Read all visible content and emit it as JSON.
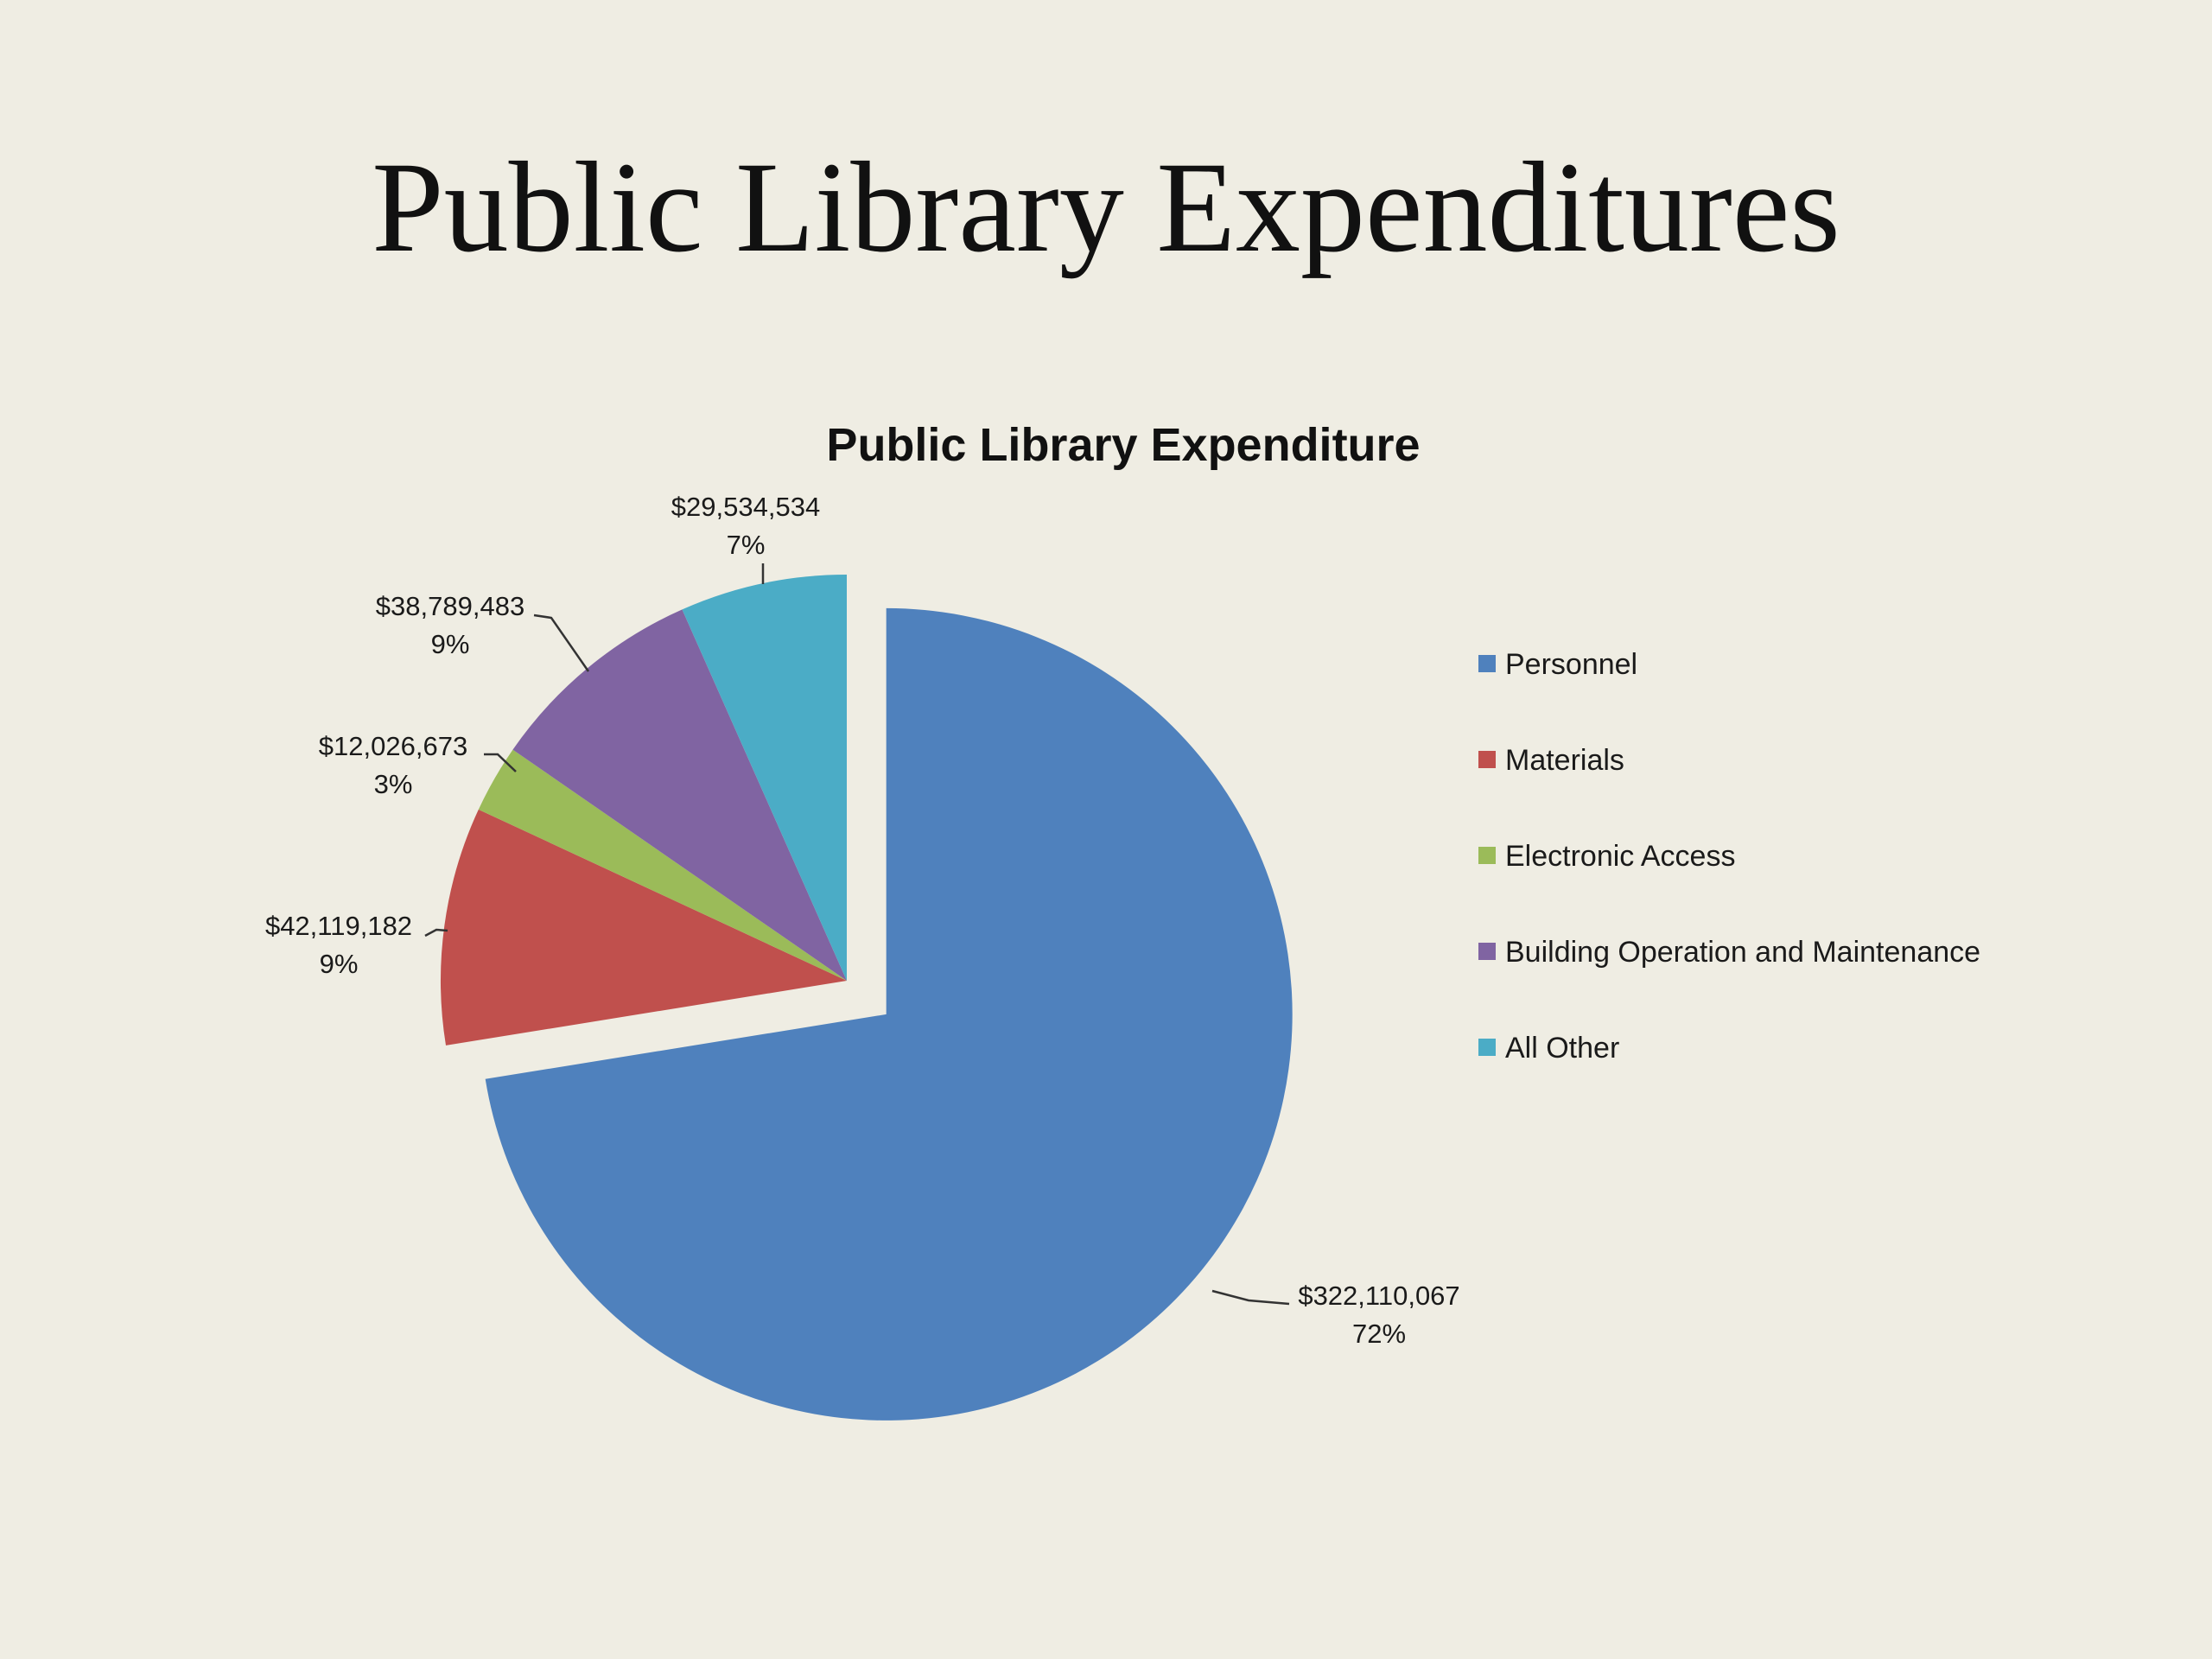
{
  "slide": {
    "title": "Public Library Expenditures"
  },
  "chart_data": {
    "type": "pie",
    "title": "Public Library Expenditure",
    "legend_position": "right",
    "exploded": [
      "Personnel"
    ],
    "slices": [
      {
        "name": "Personnel",
        "value": 322110067,
        "value_label": "$322,110,067",
        "percent_label": "72%",
        "color": "#4f81bd"
      },
      {
        "name": "Materials",
        "value": 42119182,
        "value_label": "$42,119,182",
        "percent_label": "9%",
        "color": "#c0504d"
      },
      {
        "name": "Electronic Access",
        "value": 12026673,
        "value_label": "$12,026,673",
        "percent_label": "3%",
        "color": "#9bbb59"
      },
      {
        "name": "Building Operation and Maintenance",
        "value": 38789483,
        "value_label": "$38,789,483",
        "percent_label": "9%",
        "color": "#8064a2"
      },
      {
        "name": "All Other",
        "value": 29534534,
        "value_label": "$29,534,534",
        "percent_label": "7%",
        "color": "#4bacc6"
      }
    ]
  }
}
